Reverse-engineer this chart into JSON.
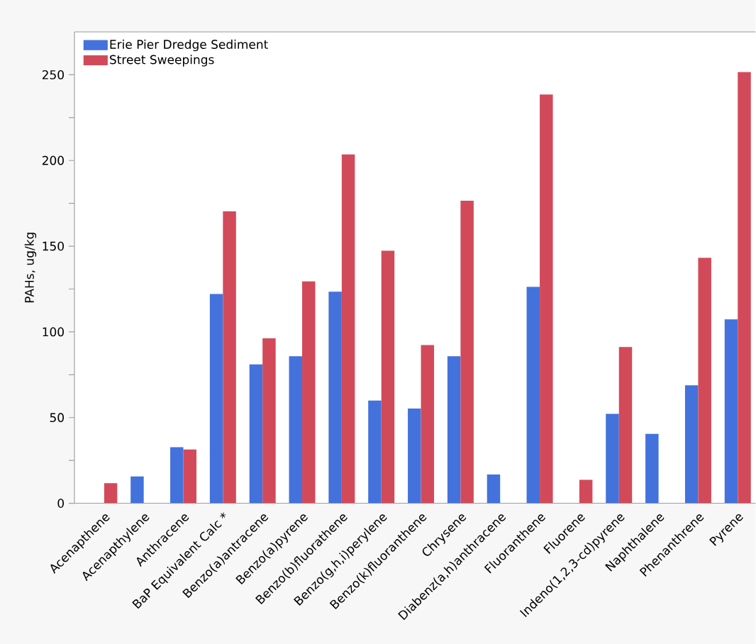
{
  "chart_data": {
    "type": "bar",
    "ylabel": "PAHs, ug/kg",
    "categories": [
      "Acenapthene",
      "Acenapthylene",
      "Anthracene",
      "BaP Equivalent Calc *",
      "Benzo(a)antracene",
      "Benzo(a)pyrene",
      "Benzo(b)fluorathene",
      "Benzo(g,h,i)perylene",
      "Benzo(k)fluoranthene",
      "Chrysene",
      "Diabenz(a,h)anthracene",
      "Fluoranthene",
      "Fluorene",
      "Indeno(1,2,3-cd)pyrene",
      "Naphthalene",
      "Phenanthrene",
      "Pyrene"
    ],
    "series": [
      {
        "name": "Erie Pier Dredge Sediment",
        "color": "#4372dc",
        "values": [
          null,
          15.7,
          32.7,
          122.1,
          81.0,
          85.8,
          123.4,
          59.9,
          55.3,
          85.8,
          16.8,
          126.3,
          null,
          52.2,
          40.5,
          68.8,
          107.3
        ]
      },
      {
        "name": "Street Sweepings",
        "color": "#d24a5a",
        "values": [
          11.7,
          null,
          31.4,
          170.3,
          96.2,
          129.4,
          203.5,
          147.3,
          92.3,
          176.5,
          null,
          238.5,
          13.7,
          91.2,
          null,
          143.2,
          251.6
        ]
      }
    ],
    "ylim": [
      0,
      275
    ],
    "yticks": [
      0,
      {
        "value": 25,
        "label": null
      },
      50,
      {
        "value": 75,
        "label": null
      },
      100,
      {
        "value": 125,
        "label": null
      },
      150,
      {
        "value": 175,
        "label": null
      },
      200,
      {
        "value": 225,
        "label": null
      },
      250
    ],
    "legend": "top left"
  }
}
